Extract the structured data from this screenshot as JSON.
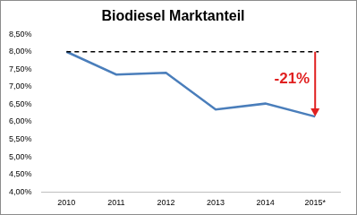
{
  "chart_data": {
    "type": "line",
    "title": "Biodiesel Marktanteil",
    "categories": [
      "2010",
      "2011",
      "2012",
      "2013",
      "2014",
      "2015*"
    ],
    "values": [
      8.0,
      7.35,
      7.4,
      6.35,
      6.52,
      6.15
    ],
    "color": "#4a7ebb",
    "ylim": [
      4,
      8.5
    ],
    "yticks": [
      {
        "value": 4,
        "label": "4,00%"
      },
      {
        "value": 4.5,
        "label": "4,50%"
      },
      {
        "value": 5,
        "label": "5,00%"
      },
      {
        "value": 5.5,
        "label": "5,50%"
      },
      {
        "value": 6,
        "label": "6,00%"
      },
      {
        "value": 6.5,
        "label": "6,50%"
      },
      {
        "value": 7,
        "label": "7,00%"
      },
      {
        "value": 7.5,
        "label": "7,50%"
      },
      {
        "value": 8,
        "label": "8,00%"
      },
      {
        "value": 8.5,
        "label": "8,50%"
      }
    ],
    "grid": false,
    "annotations": [
      {
        "text": "-21%",
        "color": "#e02020"
      }
    ]
  }
}
